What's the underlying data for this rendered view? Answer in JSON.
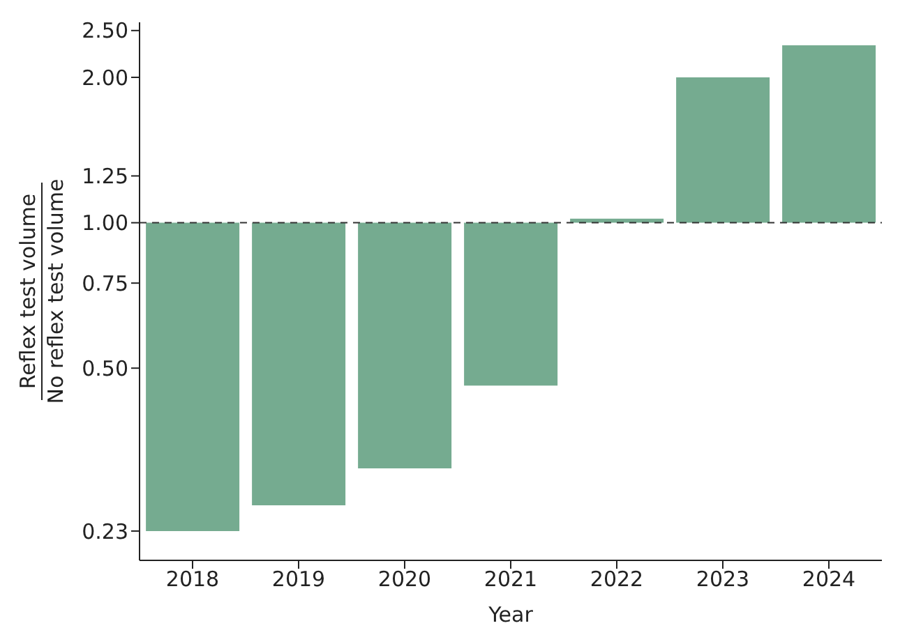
{
  "chart_data": {
    "type": "bar",
    "xlabel": "Year",
    "ylabel": "Reflex test volume\nNo reflex test volume",
    "categories": [
      "2018",
      "2019",
      "2020",
      "2021",
      "2022",
      "2023",
      "2024"
    ],
    "base": [
      1,
      1,
      1,
      1,
      1,
      1,
      1
    ],
    "values": [
      -0.77,
      -0.74,
      -0.69,
      -0.54,
      0.02,
      1.0,
      1.33
    ],
    "color": "#75ab90",
    "log": true,
    "ylim": [
      0.2,
      2.6
    ],
    "yticks": [
      {
        "value": 0.23,
        "label": "0.23"
      },
      {
        "value": 0.5,
        "label": "0.50"
      },
      {
        "value": 0.75,
        "label": "0.75"
      },
      {
        "value": 1,
        "label": "1.00"
      },
      {
        "value": 1.25,
        "label": "1.25"
      },
      {
        "value": 2,
        "label": "2.00"
      },
      {
        "value": 2.5,
        "label": "2.50"
      }
    ],
    "ref_lines": [
      {
        "axis": "y",
        "value": 1,
        "color": "#333333",
        "line_style": "dashed"
      }
    ],
    "grid": false
  }
}
